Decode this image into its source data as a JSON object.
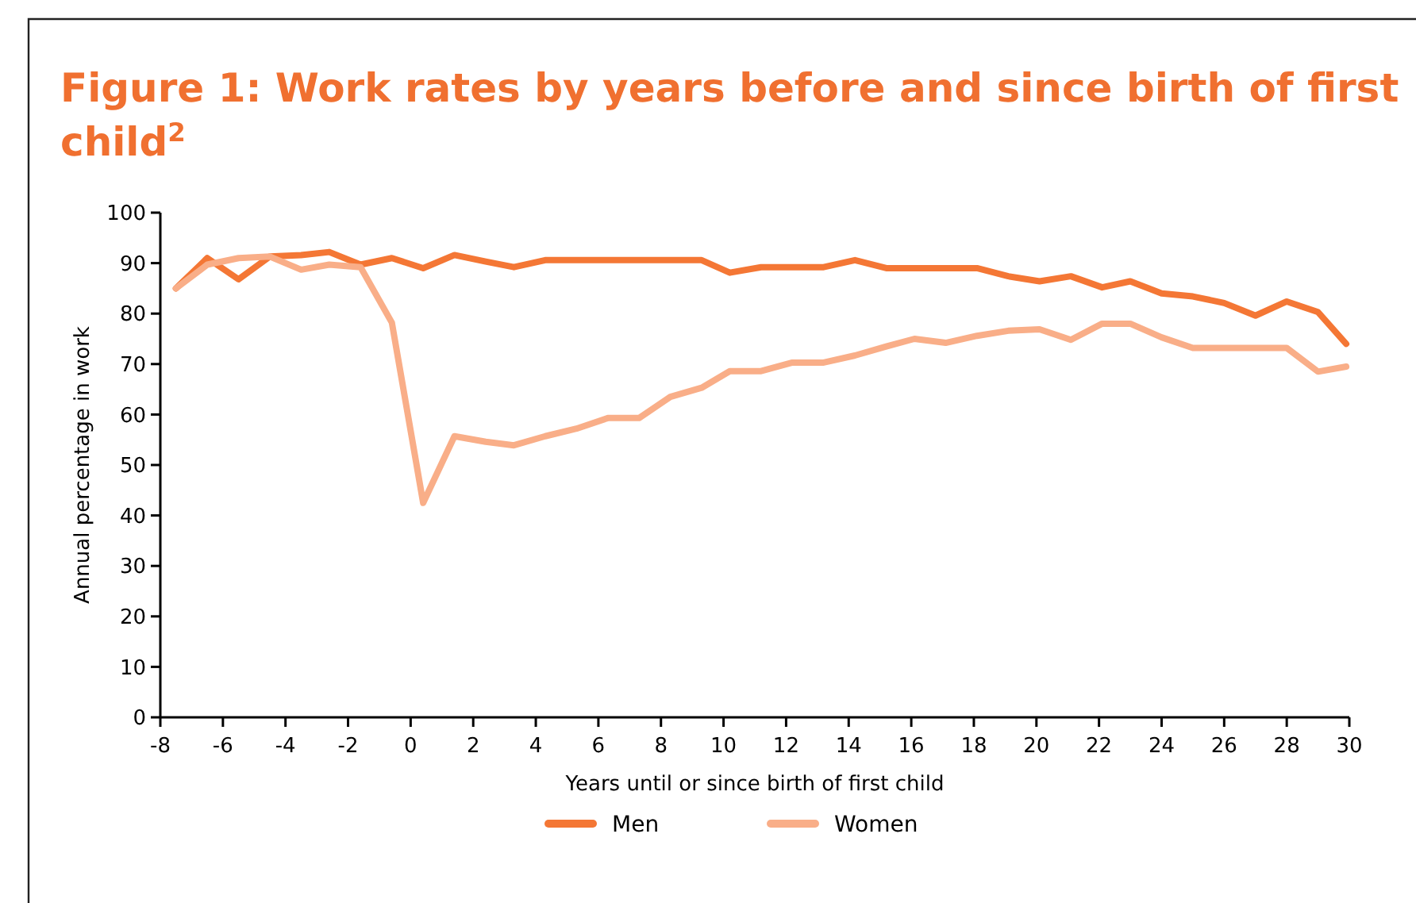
{
  "chart_data": {
    "type": "line",
    "title": "Figure 1: Work rates by years before and since birth of first child$^{2}$",
    "xlabel": "Years until or since birth of first child",
    "ylabel": "Annual percentage in work",
    "x": [
      -7.5,
      -6.5,
      -5.5,
      -4.5,
      -3.5,
      -2.6,
      -1.6,
      -0.6,
      0.4,
      1.4,
      2.4,
      3.3,
      4.3,
      5.3,
      6.3,
      7.3,
      8.3,
      9.3,
      10.2,
      11.2,
      12.2,
      13.2,
      14.2,
      15.2,
      16.1,
      17.1,
      18.1,
      19.1,
      20.1,
      21.1,
      22.1,
      23.0,
      24.0,
      25.0,
      26.0,
      27.0,
      28.0,
      29.0,
      29.9
    ],
    "series": [
      {
        "name": "Men",
        "color": "#f47735",
        "values": [
          85.0,
          91.0,
          86.8,
          91.3,
          91.6,
          92.2,
          89.7,
          91.0,
          89.0,
          91.6,
          90.3,
          89.2,
          90.6,
          90.6,
          90.6,
          90.6,
          90.6,
          90.6,
          88.1,
          89.2,
          89.2,
          89.2,
          90.6,
          89.0,
          89.0,
          89.0,
          89.0,
          87.4,
          86.4,
          87.4,
          85.2,
          86.4,
          84.0,
          83.4,
          82.1,
          79.6,
          82.4,
          80.3,
          74.0
        ]
      },
      {
        "name": "Women",
        "color": "#f9ae88",
        "values": [
          85.0,
          89.7,
          91.0,
          91.3,
          88.7,
          89.7,
          89.2,
          78.2,
          42.5,
          55.7,
          54.6,
          53.9,
          55.7,
          57.2,
          59.3,
          59.3,
          63.5,
          65.3,
          68.6,
          68.6,
          70.3,
          70.3,
          71.7,
          73.5,
          75.0,
          74.2,
          75.6,
          76.6,
          76.9,
          74.8,
          78.0,
          78.0,
          75.3,
          73.2,
          73.2,
          73.2,
          73.2,
          68.5,
          69.5
        ]
      }
    ],
    "xlim": [
      -8,
      30
    ],
    "xticks": [
      -8,
      -6,
      -4,
      -2,
      0,
      2,
      4,
      6,
      8,
      10,
      12,
      14,
      16,
      18,
      20,
      22,
      24,
      26,
      28,
      30
    ],
    "ylim": [
      0,
      100
    ],
    "yticks": [
      0,
      10,
      20,
      30,
      40,
      50,
      60,
      70,
      80,
      90,
      100
    ],
    "grid": false,
    "legend": "bottom",
    "marker": "none",
    "line_style": "solid"
  }
}
